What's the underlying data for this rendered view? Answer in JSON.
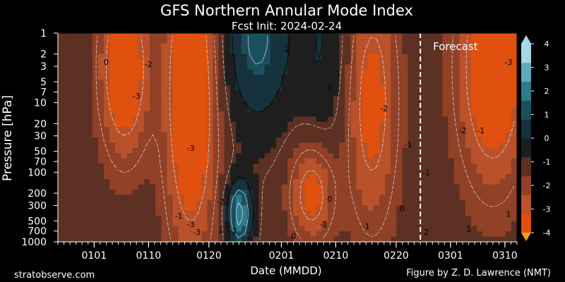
{
  "chart_data": {
    "type": "heatmap",
    "title": "GFS Northern Annular Mode Index",
    "subtitle": "Fcst Init: 2024-02-24",
    "xlabel": "Date (MMDD)",
    "ylabel": "Pressure [hPa]",
    "x_ticks": [
      "0101",
      "0110",
      "0120",
      "0201",
      "0210",
      "0220",
      "0301",
      "0310"
    ],
    "y_ticks": [
      1,
      2,
      3,
      5,
      7,
      10,
      20,
      30,
      50,
      70,
      100,
      200,
      300,
      500,
      700,
      1000
    ],
    "y_scale": "log",
    "y_range": [
      1000,
      1
    ],
    "x_range_days": [
      -6,
      70
    ],
    "x_tick_days": [
      0,
      9,
      19,
      31,
      40,
      50,
      59,
      68
    ],
    "forecast_day": 54,
    "forecast_label": "Forecast",
    "colorbar": {
      "min": -4,
      "max": 4,
      "ticks": [
        4,
        3,
        2,
        1,
        0,
        -1,
        -2,
        -3,
        -4
      ],
      "colors": [
        "#e0500f",
        "#b9522a",
        "#904127",
        "#5c3022",
        "#1e1e1e",
        "#16333d",
        "#1b4f5d",
        "#2f7a8d",
        "#5fa9c0",
        "#a8d6e4"
      ]
    },
    "contour_labels": [
      "0",
      "-2",
      "-3",
      "-3",
      "-3",
      "-2",
      "-1",
      "-2",
      "2",
      "1",
      "0",
      "-2",
      "-1",
      "-3",
      "-3",
      "-2",
      "-1",
      "-1",
      "-1",
      "0",
      "1",
      "2",
      "1",
      "-1",
      "0",
      "1"
    ],
    "nam_fields": [
      {
        "center": [
          5,
          3.2
        ],
        "sx": 2.8,
        "sy": 0.9,
        "amp": -3.2
      },
      {
        "center": [
          16,
          8
        ],
        "sx": 3,
        "sy": 1.6,
        "amp": -3.4
      },
      {
        "center": [
          27,
          1.2
        ],
        "sx": 4,
        "sy": 0.9,
        "amp": 2.4
      },
      {
        "center": [
          38,
          1.5
        ],
        "sx": 3,
        "sy": 1.0,
        "amp": 1.2
      },
      {
        "center": [
          24,
          400
        ],
        "sx": 1.5,
        "sy": 0.35,
        "amp": 3.6
      },
      {
        "center": [
          46,
          10
        ],
        "sx": 3,
        "sy": 1.3,
        "amp": -2.4
      },
      {
        "center": [
          66,
          3
        ],
        "sx": 4,
        "sy": 1.2,
        "amp": -3.3
      },
      {
        "center": [
          36,
          200
        ],
        "sx": 2.5,
        "sy": 0.5,
        "amp": -2.5
      }
    ],
    "nam_base": -1.2,
    "credit_left": "stratobserve.com",
    "credit_right": "Figure by Z. D. Lawrence (NMT)"
  }
}
